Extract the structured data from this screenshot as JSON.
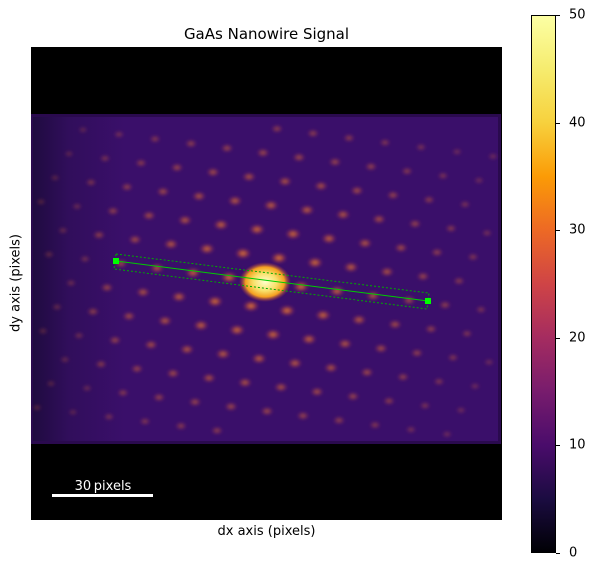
{
  "figure": {
    "title": "GaAs Nanowire Signal",
    "xlabel": "dx axis (pixels)",
    "ylabel": "dy axis (pixels)",
    "scalebar_label": "30 pixels"
  },
  "colorbar": {
    "colormap": "inferno",
    "range": [
      0,
      50
    ],
    "ticks": [
      "0",
      "10",
      "20",
      "30",
      "40",
      "50"
    ]
  },
  "line_profile": {
    "line_color": "#00cc00",
    "marker_color": "#00ff00"
  },
  "colors": {
    "background": "#000000",
    "diffraction_bg": "#3a0f6a"
  }
}
